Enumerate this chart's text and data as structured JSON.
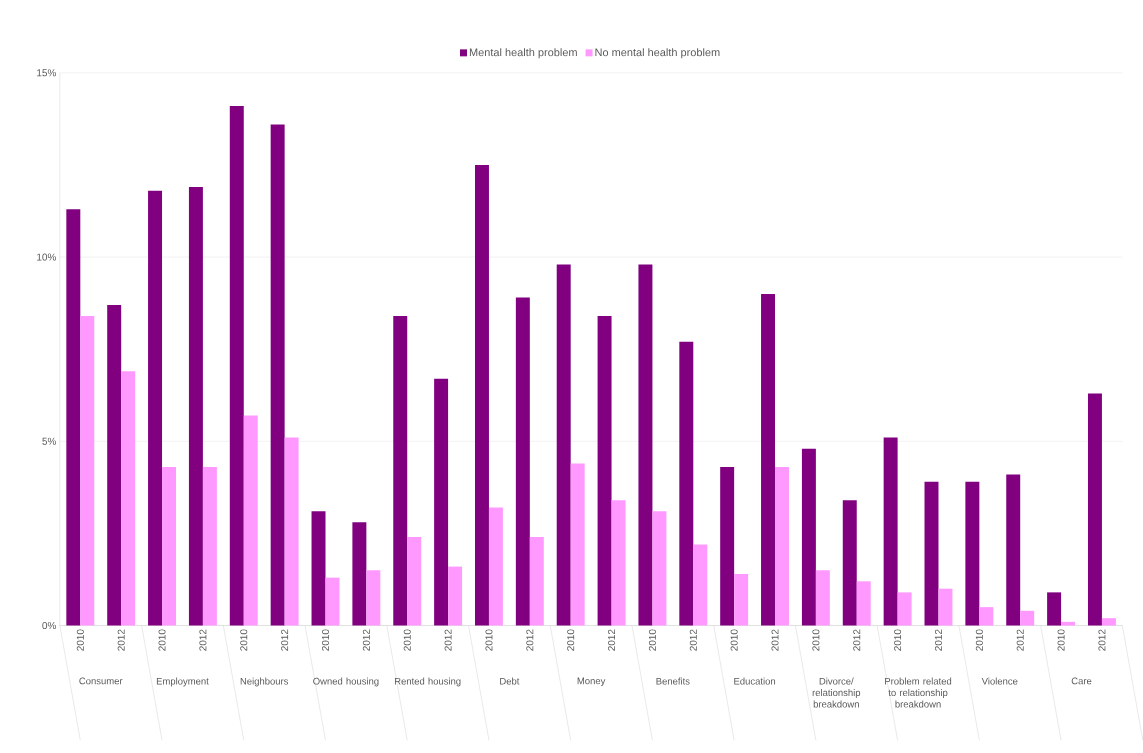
{
  "chart_data": {
    "type": "bar",
    "categories": [
      "2010",
      "2012",
      "2010",
      "2012",
      "2010",
      "2012",
      "2010",
      "2012",
      "2010",
      "2012",
      "2010",
      "2012",
      "2010",
      "2012",
      "2010",
      "2012",
      "2010",
      "2012",
      "2010",
      "2012",
      "2010",
      "2012",
      "2010",
      "2012",
      "2010",
      "2012"
    ],
    "series": [
      {
        "name": "Mental health problem",
        "color": "#800080",
        "values": [
          11.3,
          8.7,
          11.8,
          11.9,
          14.1,
          13.6,
          3.1,
          2.8,
          8.4,
          6.7,
          12.5,
          8.9,
          9.8,
          8.4,
          9.8,
          7.7,
          4.3,
          9.0,
          4.8,
          3.4,
          5.1,
          3.9,
          3.9,
          4.1,
          0.9,
          6.3
        ]
      },
      {
        "name": "No mental health problem",
        "color": "#ff99ff",
        "values": [
          8.4,
          6.9,
          4.3,
          4.3,
          5.7,
          5.1,
          1.3,
          1.5,
          2.4,
          1.6,
          3.2,
          2.4,
          4.4,
          3.4,
          3.1,
          2.2,
          1.4,
          4.3,
          1.5,
          1.2,
          0.9,
          1.0,
          0.5,
          0.4,
          0.1,
          0.2
        ]
      }
    ],
    "annotations": [
      "Consumer",
      "Employment",
      "Neighbours",
      "Owned housing",
      "Rented housing",
      "Debt",
      "Money",
      "Benefits",
      "Education",
      "Divorce/ relationship breakdown",
      "Problem related to relationship breakdown",
      "Violence",
      "Care"
    ],
    "ylim": [
      0,
      15
    ],
    "yticks": [
      {
        "value": 0,
        "label": "0%"
      },
      {
        "value": 5,
        "label": "5%"
      },
      {
        "value": 10,
        "label": "10%"
      },
      {
        "value": 15,
        "label": "15%"
      }
    ],
    "grid": "y",
    "legend": "top"
  }
}
